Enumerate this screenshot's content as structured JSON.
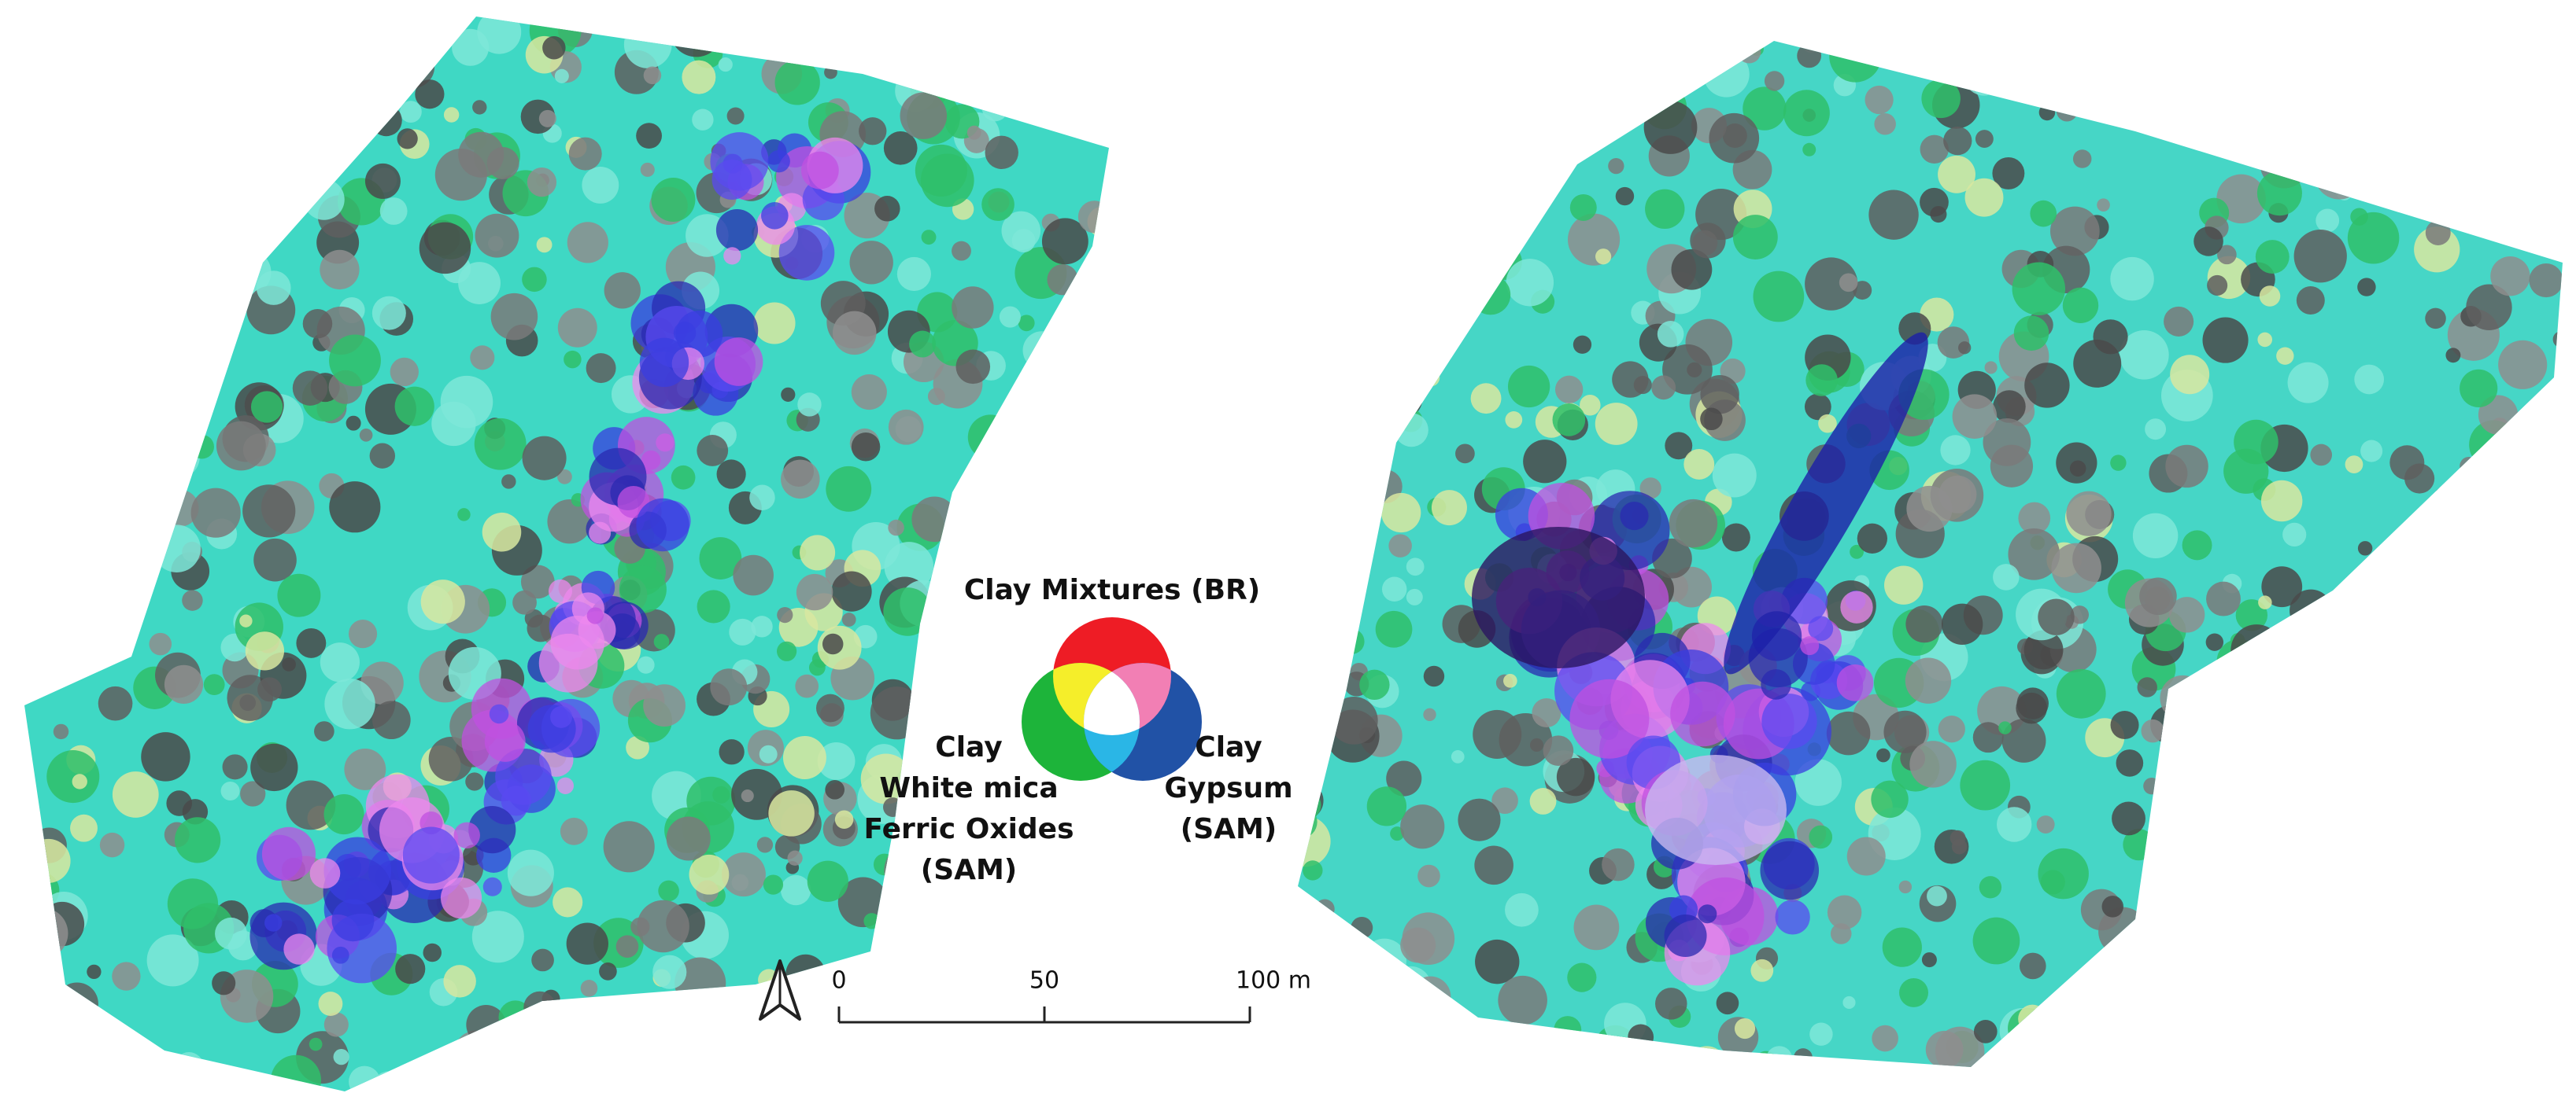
{
  "legend": {
    "top": "Clay Mixtures (BR)",
    "left": [
      "Clay",
      "White mica",
      "Ferric Oxides",
      "(SAM)"
    ],
    "right": [
      "Clay",
      "Gypsum",
      "(SAM)"
    ]
  },
  "scale_bar": {
    "ticks": [
      0,
      50,
      {
        "value": 100,
        "label": "100 m"
      }
    ]
  }
}
